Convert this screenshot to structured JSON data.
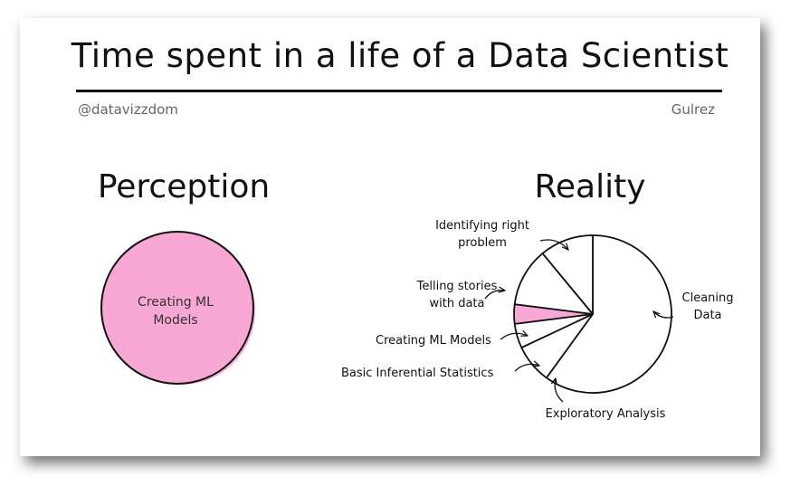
{
  "header": {
    "title": "Time spent in a life of a Data Scientist",
    "handle": "@datavizzdom",
    "author": "Gulrez"
  },
  "colors": {
    "pink": "#f7a8d4",
    "ink": "#111111"
  },
  "chart_data": [
    {
      "type": "pie",
      "title": "Perception",
      "slices": [
        {
          "label": "Creating ML Models",
          "value": 100
        }
      ]
    },
    {
      "type": "pie",
      "title": "Reality",
      "slices": [
        {
          "label": "Cleaning Data",
          "value": 60
        },
        {
          "label": "Exploratory Analysis",
          "value": 8
        },
        {
          "label": "Basic Inferential Statistics",
          "value": 5
        },
        {
          "label": "Creating ML Models",
          "value": 4
        },
        {
          "label": "Telling stories with data",
          "value": 12
        },
        {
          "label": "Identifying right problem",
          "value": 11
        }
      ]
    }
  ]
}
